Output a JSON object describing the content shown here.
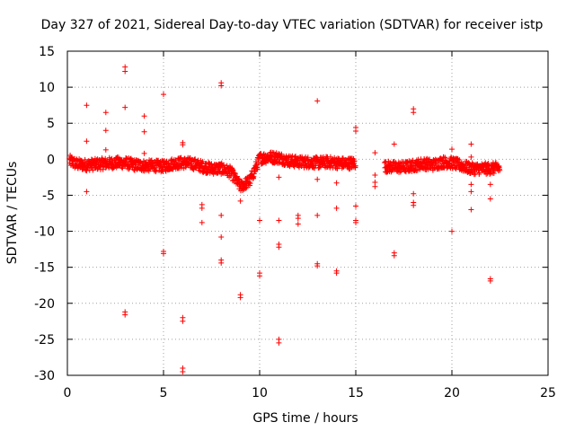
{
  "chart_data": {
    "type": "scatter",
    "title": "Day 327 of 2021, Sidereal Day-to-day VTEC variation (SDTVAR) for receiver istp",
    "xlabel": "GPS time / hours",
    "ylabel": "SDTVAR / TECUs",
    "xlim": [
      0,
      25
    ],
    "ylim": [
      -30,
      15
    ],
    "xticks": [
      0,
      5,
      10,
      15,
      20,
      25
    ],
    "yticks": [
      -30,
      -25,
      -20,
      -15,
      -10,
      -5,
      0,
      5,
      10,
      15
    ],
    "grid": true,
    "marker": "+",
    "color": "#ff0000",
    "baseline_trend": [
      [
        0.1,
        -0.2
      ],
      [
        0.5,
        -0.7
      ],
      [
        1.0,
        -0.8
      ],
      [
        1.5,
        -0.7
      ],
      [
        2.0,
        -0.6
      ],
      [
        2.5,
        -0.5
      ],
      [
        3.0,
        -0.5
      ],
      [
        3.5,
        -0.8
      ],
      [
        4.0,
        -0.9
      ],
      [
        4.5,
        -0.9
      ],
      [
        5.0,
        -1.0
      ],
      [
        5.5,
        -0.6
      ],
      [
        6.0,
        -0.5
      ],
      [
        6.5,
        -0.6
      ],
      [
        7.0,
        -1.0
      ],
      [
        7.5,
        -1.3
      ],
      [
        8.0,
        -1.3
      ],
      [
        8.5,
        -1.8
      ],
      [
        9.0,
        -3.8
      ],
      [
        9.5,
        -3.0
      ],
      [
        10.0,
        0.1
      ],
      [
        10.5,
        0.3
      ],
      [
        11.0,
        0.2
      ],
      [
        11.5,
        -0.2
      ],
      [
        12.0,
        -0.4
      ],
      [
        12.5,
        -0.4
      ],
      [
        13.0,
        -0.5
      ],
      [
        13.5,
        -0.4
      ],
      [
        14.0,
        -0.5
      ],
      [
        14.5,
        -0.6
      ],
      [
        15.0,
        -0.5
      ],
      [
        16.5,
        -1.0
      ],
      [
        17.0,
        -1.1
      ],
      [
        17.5,
        -1.1
      ],
      [
        18.0,
        -0.9
      ],
      [
        18.5,
        -0.6
      ],
      [
        19.0,
        -0.8
      ],
      [
        19.5,
        -0.4
      ],
      [
        20.0,
        -0.5
      ],
      [
        20.5,
        -0.9
      ],
      [
        21.0,
        -1.3
      ],
      [
        21.5,
        -1.3
      ],
      [
        22.0,
        -1.3
      ],
      [
        22.5,
        -1.2
      ]
    ],
    "outliers": [
      [
        1.0,
        7.5
      ],
      [
        1.0,
        2.5
      ],
      [
        1.0,
        -4.5
      ],
      [
        2.0,
        6.5
      ],
      [
        2.0,
        4.0
      ],
      [
        2.0,
        1.3
      ],
      [
        3.0,
        12.8
      ],
      [
        3.0,
        12.2
      ],
      [
        3.0,
        7.2
      ],
      [
        3.0,
        -21.2
      ],
      [
        3.0,
        -21.6
      ],
      [
        4.0,
        6.0
      ],
      [
        4.0,
        3.8
      ],
      [
        4.0,
        0.8
      ],
      [
        5.0,
        9.0
      ],
      [
        5.0,
        -12.8
      ],
      [
        5.0,
        -13.1
      ],
      [
        6.0,
        2.3
      ],
      [
        6.0,
        2.0
      ],
      [
        6.0,
        -22.0
      ],
      [
        6.0,
        -22.5
      ],
      [
        6.0,
        -29.0
      ],
      [
        6.0,
        -29.5
      ],
      [
        7.0,
        -6.3
      ],
      [
        7.0,
        -6.8
      ],
      [
        7.0,
        -8.8
      ],
      [
        8.0,
        10.6
      ],
      [
        8.0,
        10.2
      ],
      [
        8.0,
        -7.8
      ],
      [
        8.0,
        -10.8
      ],
      [
        8.0,
        -14.0
      ],
      [
        8.0,
        -14.4
      ],
      [
        9.0,
        -5.8
      ],
      [
        9.0,
        -18.8
      ],
      [
        9.0,
        -19.2
      ],
      [
        10.0,
        -8.5
      ],
      [
        10.0,
        -15.8
      ],
      [
        10.0,
        -16.2
      ],
      [
        11.0,
        -2.5
      ],
      [
        11.0,
        -8.5
      ],
      [
        11.0,
        -11.8
      ],
      [
        11.0,
        -12.2
      ],
      [
        11.0,
        -25.0
      ],
      [
        11.0,
        -25.5
      ],
      [
        12.0,
        -7.8
      ],
      [
        12.0,
        -8.2
      ],
      [
        12.0,
        -9.0
      ],
      [
        13.0,
        8.1
      ],
      [
        13.0,
        -2.8
      ],
      [
        13.0,
        -7.8
      ],
      [
        13.0,
        -14.5
      ],
      [
        13.0,
        -14.8
      ],
      [
        14.0,
        -3.3
      ],
      [
        14.0,
        -6.8
      ],
      [
        14.0,
        -15.5
      ],
      [
        14.0,
        -15.8
      ],
      [
        15.0,
        4.4
      ],
      [
        15.0,
        3.9
      ],
      [
        15.0,
        -6.5
      ],
      [
        15.0,
        -8.5
      ],
      [
        15.0,
        -8.8
      ],
      [
        16.0,
        0.9
      ],
      [
        16.0,
        -2.2
      ],
      [
        16.0,
        -3.2
      ],
      [
        16.0,
        -3.8
      ],
      [
        17.0,
        2.1
      ],
      [
        17.0,
        -13.0
      ],
      [
        17.0,
        -13.4
      ],
      [
        18.0,
        7.0
      ],
      [
        18.0,
        6.5
      ],
      [
        18.0,
        -4.8
      ],
      [
        18.0,
        -6.0
      ],
      [
        18.0,
        -6.4
      ],
      [
        20.0,
        1.4
      ],
      [
        20.0,
        -10.0
      ],
      [
        21.0,
        2.1
      ],
      [
        21.0,
        0.3
      ],
      [
        21.0,
        -3.5
      ],
      [
        21.0,
        -4.5
      ],
      [
        21.0,
        -7.0
      ],
      [
        22.0,
        -3.5
      ],
      [
        22.0,
        -5.5
      ],
      [
        22.0,
        -16.6
      ],
      [
        22.0,
        -16.9
      ]
    ]
  }
}
